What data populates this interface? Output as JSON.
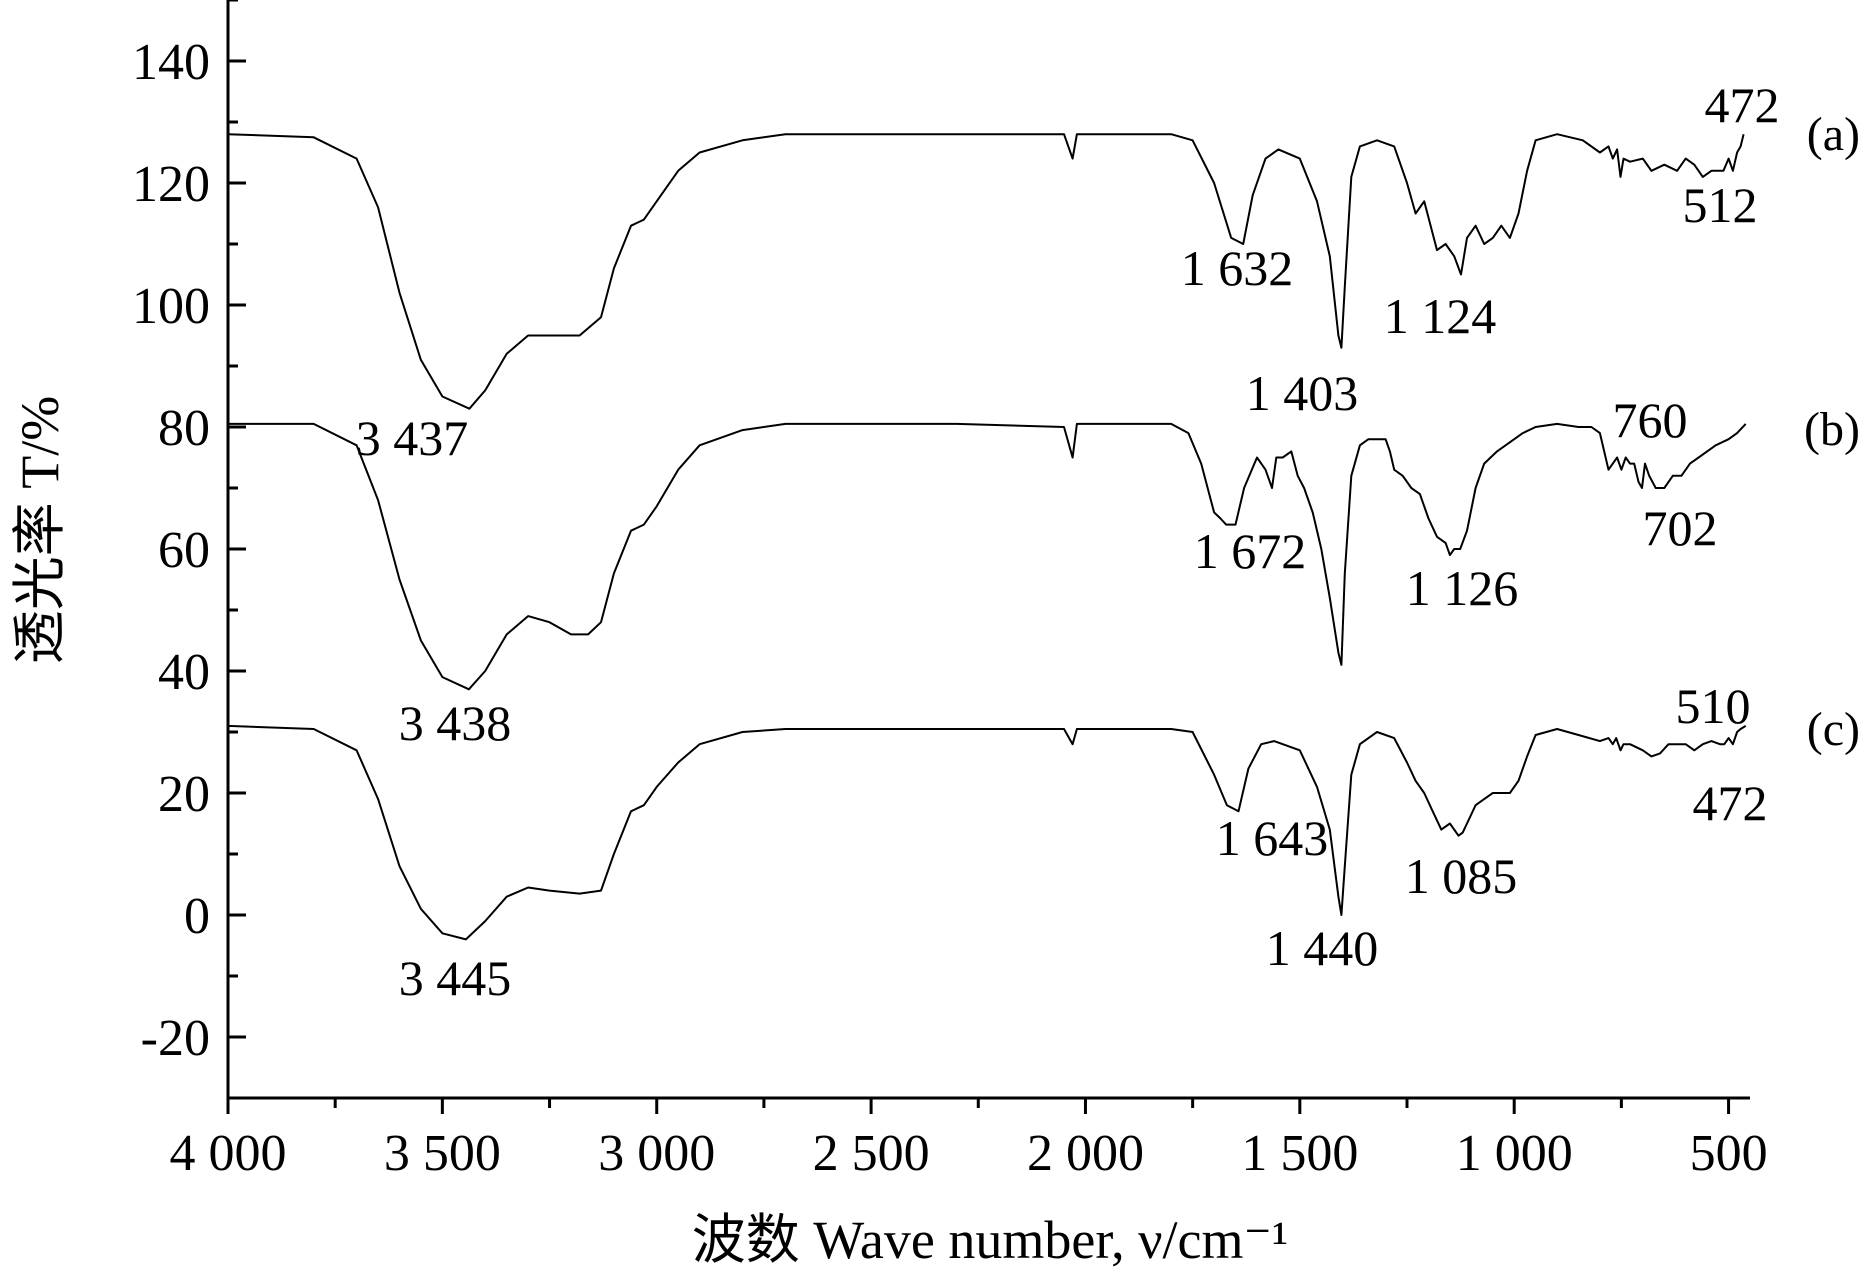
{
  "chart_data": {
    "type": "line",
    "xlabel": "波数 Wave number, ν/cm⁻¹",
    "ylabel": "透光率 T/%",
    "xlim": [
      4000,
      450
    ],
    "ylim": [
      -30,
      150
    ],
    "x_reversed": true,
    "x_ticks": [
      4000,
      3500,
      3000,
      2500,
      2000,
      1500,
      1000,
      500
    ],
    "x_tick_labels": [
      "4 000",
      "3 500",
      "3 000",
      "2 500",
      "2 000",
      "1 500",
      "1 000",
      "500"
    ],
    "y_ticks": [
      -20,
      0,
      20,
      40,
      60,
      80,
      100,
      120,
      140
    ],
    "y_tick_labels": [
      "-20",
      "0",
      "20",
      "40",
      "60",
      "80",
      "100",
      "120",
      "140"
    ],
    "grid": false,
    "series": [
      {
        "name": "(a)",
        "points": [
          [
            4000,
            128
          ],
          [
            3800,
            127.5
          ],
          [
            3700,
            124
          ],
          [
            3650,
            116
          ],
          [
            3600,
            102
          ],
          [
            3550,
            91
          ],
          [
            3500,
            85
          ],
          [
            3437,
            83
          ],
          [
            3400,
            86
          ],
          [
            3350,
            92
          ],
          [
            3300,
            95
          ],
          [
            3250,
            95
          ],
          [
            3180,
            95
          ],
          [
            3130,
            98
          ],
          [
            3100,
            106
          ],
          [
            3060,
            113
          ],
          [
            3030,
            114
          ],
          [
            3000,
            117
          ],
          [
            2950,
            122
          ],
          [
            2900,
            125
          ],
          [
            2800,
            127
          ],
          [
            2700,
            128
          ],
          [
            2500,
            128
          ],
          [
            2350,
            128
          ],
          [
            2050,
            128
          ],
          [
            2030,
            124
          ],
          [
            2020,
            128
          ],
          [
            1800,
            128
          ],
          [
            1750,
            127
          ],
          [
            1700,
            120
          ],
          [
            1660,
            111
          ],
          [
            1632,
            110
          ],
          [
            1610,
            118
          ],
          [
            1580,
            124
          ],
          [
            1550,
            125.5
          ],
          [
            1500,
            124
          ],
          [
            1460,
            117
          ],
          [
            1430,
            108
          ],
          [
            1410,
            95
          ],
          [
            1403,
            93
          ],
          [
            1395,
            103
          ],
          [
            1380,
            121
          ],
          [
            1360,
            126
          ],
          [
            1320,
            127
          ],
          [
            1280,
            126
          ],
          [
            1250,
            120
          ],
          [
            1230,
            115
          ],
          [
            1210,
            117
          ],
          [
            1180,
            109
          ],
          [
            1160,
            110
          ],
          [
            1140,
            108
          ],
          [
            1124,
            105
          ],
          [
            1110,
            111
          ],
          [
            1090,
            113
          ],
          [
            1070,
            110
          ],
          [
            1050,
            111
          ],
          [
            1030,
            113
          ],
          [
            1010,
            111
          ],
          [
            990,
            115
          ],
          [
            970,
            122
          ],
          [
            950,
            127
          ],
          [
            900,
            128
          ],
          [
            840,
            127
          ],
          [
            800,
            125
          ],
          [
            780,
            126
          ],
          [
            770,
            124
          ],
          [
            760,
            125.5
          ],
          [
            752,
            121
          ],
          [
            745,
            124
          ],
          [
            730,
            123.5
          ],
          [
            700,
            124
          ],
          [
            680,
            122
          ],
          [
            650,
            123
          ],
          [
            620,
            122
          ],
          [
            600,
            124
          ],
          [
            580,
            123
          ],
          [
            560,
            121
          ],
          [
            540,
            122
          ],
          [
            512,
            122
          ],
          [
            500,
            124
          ],
          [
            490,
            122
          ],
          [
            480,
            125
          ],
          [
            472,
            126
          ],
          [
            465,
            128
          ]
        ]
      },
      {
        "name": "(b)",
        "points": [
          [
            4000,
            80.5
          ],
          [
            3800,
            80.5
          ],
          [
            3700,
            77
          ],
          [
            3650,
            68
          ],
          [
            3600,
            55
          ],
          [
            3550,
            45
          ],
          [
            3500,
            39
          ],
          [
            3438,
            37
          ],
          [
            3400,
            40
          ],
          [
            3350,
            46
          ],
          [
            3300,
            49
          ],
          [
            3250,
            48
          ],
          [
            3200,
            46
          ],
          [
            3160,
            46
          ],
          [
            3130,
            48
          ],
          [
            3100,
            56
          ],
          [
            3060,
            63
          ],
          [
            3030,
            64
          ],
          [
            3000,
            67
          ],
          [
            2950,
            73
          ],
          [
            2900,
            77
          ],
          [
            2800,
            79.5
          ],
          [
            2700,
            80.5
          ],
          [
            2500,
            80.5
          ],
          [
            2300,
            80.5
          ],
          [
            2050,
            80
          ],
          [
            2030,
            75
          ],
          [
            2020,
            80.5
          ],
          [
            1800,
            80.5
          ],
          [
            1760,
            79
          ],
          [
            1730,
            74
          ],
          [
            1700,
            66
          ],
          [
            1685,
            65
          ],
          [
            1672,
            64
          ],
          [
            1650,
            64
          ],
          [
            1630,
            70
          ],
          [
            1600,
            75
          ],
          [
            1580,
            73
          ],
          [
            1565,
            70
          ],
          [
            1555,
            75
          ],
          [
            1540,
            75
          ],
          [
            1520,
            76
          ],
          [
            1505,
            72
          ],
          [
            1490,
            70
          ],
          [
            1470,
            66
          ],
          [
            1450,
            60
          ],
          [
            1430,
            52
          ],
          [
            1410,
            43
          ],
          [
            1403,
            41
          ],
          [
            1395,
            56
          ],
          [
            1380,
            72
          ],
          [
            1360,
            77
          ],
          [
            1340,
            78
          ],
          [
            1300,
            78
          ],
          [
            1290,
            76
          ],
          [
            1280,
            73
          ],
          [
            1260,
            72
          ],
          [
            1240,
            70
          ],
          [
            1220,
            69
          ],
          [
            1200,
            65
          ],
          [
            1180,
            62
          ],
          [
            1160,
            61
          ],
          [
            1150,
            59
          ],
          [
            1140,
            60
          ],
          [
            1126,
            60
          ],
          [
            1110,
            63
          ],
          [
            1090,
            70
          ],
          [
            1070,
            74
          ],
          [
            1040,
            76
          ],
          [
            1020,
            77
          ],
          [
            1000,
            78
          ],
          [
            980,
            79
          ],
          [
            950,
            80
          ],
          [
            900,
            80.5
          ],
          [
            850,
            80
          ],
          [
            820,
            80
          ],
          [
            800,
            79
          ],
          [
            790,
            76
          ],
          [
            780,
            73
          ],
          [
            770,
            74
          ],
          [
            760,
            75
          ],
          [
            750,
            73
          ],
          [
            740,
            75
          ],
          [
            730,
            74
          ],
          [
            720,
            74
          ],
          [
            710,
            71
          ],
          [
            702,
            70
          ],
          [
            695,
            74
          ],
          [
            685,
            72
          ],
          [
            670,
            70
          ],
          [
            650,
            70
          ],
          [
            630,
            72
          ],
          [
            610,
            72
          ],
          [
            590,
            74
          ],
          [
            570,
            75
          ],
          [
            550,
            76
          ],
          [
            530,
            77
          ],
          [
            500,
            78
          ],
          [
            480,
            79
          ],
          [
            460,
            80.5
          ]
        ]
      },
      {
        "name": "(c)",
        "points": [
          [
            4000,
            31
          ],
          [
            3800,
            30.5
          ],
          [
            3700,
            27
          ],
          [
            3650,
            19
          ],
          [
            3600,
            8
          ],
          [
            3550,
            1
          ],
          [
            3500,
            -3
          ],
          [
            3445,
            -4
          ],
          [
            3400,
            -1
          ],
          [
            3350,
            3
          ],
          [
            3300,
            4.5
          ],
          [
            3250,
            4
          ],
          [
            3180,
            3.5
          ],
          [
            3130,
            4
          ],
          [
            3100,
            10
          ],
          [
            3060,
            17
          ],
          [
            3030,
            18
          ],
          [
            3000,
            21
          ],
          [
            2950,
            25
          ],
          [
            2900,
            28
          ],
          [
            2800,
            30
          ],
          [
            2700,
            30.5
          ],
          [
            2500,
            30.5
          ],
          [
            2350,
            30.5
          ],
          [
            2050,
            30.5
          ],
          [
            2030,
            28
          ],
          [
            2020,
            30.5
          ],
          [
            1800,
            30.5
          ],
          [
            1750,
            30
          ],
          [
            1700,
            23
          ],
          [
            1670,
            18
          ],
          [
            1643,
            17
          ],
          [
            1620,
            24
          ],
          [
            1590,
            28
          ],
          [
            1560,
            28.5
          ],
          [
            1500,
            27
          ],
          [
            1460,
            21
          ],
          [
            1430,
            14
          ],
          [
            1410,
            3
          ],
          [
            1403,
            0
          ],
          [
            1395,
            8
          ],
          [
            1380,
            23
          ],
          [
            1360,
            28
          ],
          [
            1320,
            30
          ],
          [
            1280,
            29
          ],
          [
            1250,
            25
          ],
          [
            1230,
            22
          ],
          [
            1210,
            20
          ],
          [
            1190,
            17
          ],
          [
            1170,
            14
          ],
          [
            1150,
            15
          ],
          [
            1130,
            13
          ],
          [
            1120,
            13.5
          ],
          [
            1110,
            15
          ],
          [
            1090,
            18
          ],
          [
            1070,
            19
          ],
          [
            1050,
            20
          ],
          [
            1030,
            20
          ],
          [
            1010,
            20
          ],
          [
            990,
            22
          ],
          [
            970,
            26
          ],
          [
            950,
            29.5
          ],
          [
            900,
            30.5
          ],
          [
            850,
            29.5
          ],
          [
            800,
            28.5
          ],
          [
            780,
            29
          ],
          [
            770,
            28
          ],
          [
            762,
            29
          ],
          [
            752,
            27
          ],
          [
            745,
            28
          ],
          [
            730,
            28
          ],
          [
            700,
            27
          ],
          [
            680,
            26
          ],
          [
            660,
            26.5
          ],
          [
            640,
            28
          ],
          [
            620,
            28
          ],
          [
            600,
            28
          ],
          [
            580,
            27
          ],
          [
            560,
            28
          ],
          [
            540,
            28.5
          ],
          [
            520,
            28
          ],
          [
            510,
            28
          ],
          [
            500,
            29
          ],
          [
            490,
            28
          ],
          [
            480,
            30
          ],
          [
            472,
            30.5
          ],
          [
            460,
            31
          ]
        ]
      }
    ],
    "annotations": [
      {
        "text": "3 437",
        "series": "(a)"
      },
      {
        "text": "1 632",
        "series": "(a)"
      },
      {
        "text": "1 403",
        "series": "(a)"
      },
      {
        "text": "1 124",
        "series": "(a)"
      },
      {
        "text": "472",
        "series": "(a)"
      },
      {
        "text": "512",
        "series": "(a)"
      },
      {
        "text": "3 438",
        "series": "(b)"
      },
      {
        "text": "1 672",
        "series": "(b)"
      },
      {
        "text": "1 126",
        "series": "(b)"
      },
      {
        "text": "760",
        "series": "(b)"
      },
      {
        "text": "702",
        "series": "(b)"
      },
      {
        "text": "3 445",
        "series": "(c)"
      },
      {
        "text": "1 643",
        "series": "(c)"
      },
      {
        "text": "1 440",
        "series": "(c)"
      },
      {
        "text": "1 085",
        "series": "(c)"
      },
      {
        "text": "510",
        "series": "(c)"
      },
      {
        "text": "472",
        "series": "(c)"
      }
    ]
  }
}
